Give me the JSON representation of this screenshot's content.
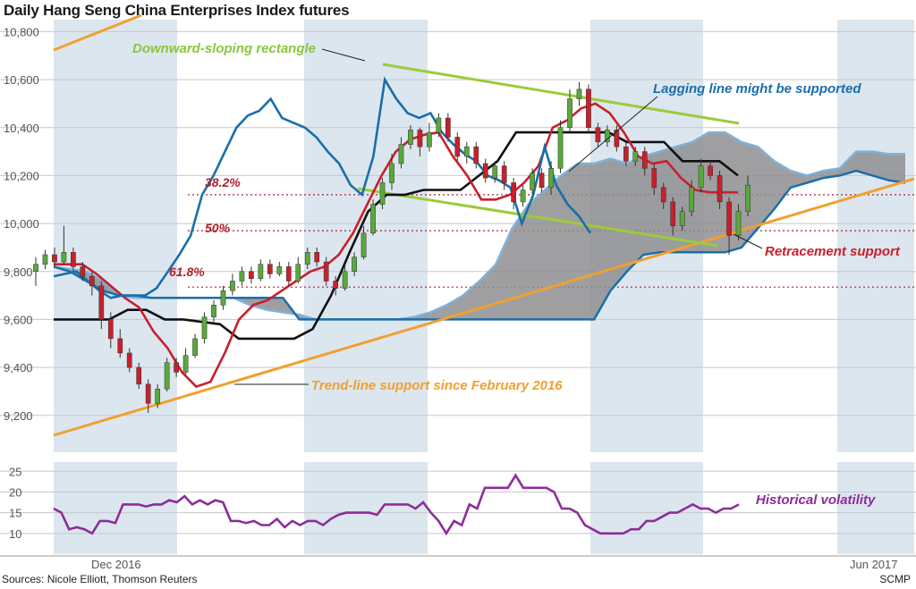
{
  "header": {
    "title": "Daily Hang Seng China Enterprises Index futures"
  },
  "footer": {
    "sources": "Sources: Nicole Elliott, Thomson Reuters",
    "credit": "SCMP"
  },
  "colors": {
    "band": "#dce6ef",
    "grid": "#c8c8c8",
    "candle_up": "#5aa83c",
    "candle_down": "#c8202c",
    "lagging": "#1a6ea8",
    "red_line": "#c8202c",
    "black_line": "#111111",
    "cloud": "#8e8e90",
    "cloud_edge": "#7fb2da",
    "green_line": "#9ccb3b",
    "orange_line": "#f0a030",
    "purple": "#8e2c9a",
    "level_red": "#b0202c"
  },
  "chart_data": [
    {
      "type": "candlestick",
      "title": "Daily Hang Seng China Enterprises Index futures",
      "yticks": [
        "10,800",
        "10,600",
        "10,400",
        "10,200",
        "10,000",
        "9,800",
        "9,600",
        "9,400",
        "9,200"
      ],
      "ylim": [
        9050,
        10850
      ],
      "x_labels": [
        "Dec 2016",
        "Jun 2017"
      ],
      "grid": true,
      "levels": [
        {
          "label": "38.2%",
          "value": 10120
        },
        {
          "label": "50%",
          "value": 9970
        },
        {
          "label": "61.8%",
          "value": 9735
        }
      ],
      "annotations": [
        {
          "text": "Downward-sloping rectangle",
          "color": "green"
        },
        {
          "text": "Lagging line might be supported",
          "color": "blue"
        },
        {
          "text": "Retracement support",
          "color": "red"
        },
        {
          "text": "Trend-line support since February 2016",
          "color": "orange"
        }
      ],
      "candles": [
        [
          9800,
          9830,
          9740,
          9860
        ],
        [
          9830,
          9870,
          9810,
          9890
        ],
        [
          9870,
          9840,
          9820,
          9900
        ],
        [
          9840,
          9880,
          9830,
          9990
        ],
        [
          9880,
          9820,
          9800,
          9900
        ],
        [
          9820,
          9780,
          9760,
          9840
        ],
        [
          9780,
          9740,
          9700,
          9800
        ],
        [
          9740,
          9600,
          9560,
          9760
        ],
        [
          9600,
          9520,
          9480,
          9630
        ],
        [
          9520,
          9460,
          9440,
          9560
        ],
        [
          9460,
          9400,
          9380,
          9480
        ],
        [
          9400,
          9330,
          9310,
          9420
        ],
        [
          9330,
          9250,
          9210,
          9350
        ],
        [
          9250,
          9310,
          9230,
          9330
        ],
        [
          9310,
          9420,
          9300,
          9440
        ],
        [
          9420,
          9380,
          9360,
          9440
        ],
        [
          9380,
          9450,
          9370,
          9480
        ],
        [
          9450,
          9520,
          9440,
          9540
        ],
        [
          9520,
          9610,
          9500,
          9630
        ],
        [
          9610,
          9660,
          9590,
          9680
        ],
        [
          9660,
          9720,
          9640,
          9740
        ],
        [
          9720,
          9760,
          9700,
          9790
        ],
        [
          9760,
          9800,
          9740,
          9820
        ],
        [
          9800,
          9770,
          9750,
          9820
        ],
        [
          9770,
          9830,
          9760,
          9850
        ],
        [
          9830,
          9790,
          9770,
          9850
        ],
        [
          9790,
          9820,
          9780,
          9840
        ],
        [
          9820,
          9760,
          9740,
          9840
        ],
        [
          9760,
          9830,
          9750,
          9860
        ],
        [
          9830,
          9880,
          9810,
          9900
        ],
        [
          9880,
          9840,
          9820,
          9900
        ],
        [
          9840,
          9760,
          9740,
          9860
        ],
        [
          9760,
          9730,
          9700,
          9780
        ],
        [
          9730,
          9800,
          9720,
          9830
        ],
        [
          9800,
          9860,
          9780,
          9880
        ],
        [
          9860,
          9960,
          9850,
          9990
        ],
        [
          9960,
          10080,
          9950,
          10100
        ],
        [
          10080,
          10170,
          10060,
          10190
        ],
        [
          10170,
          10250,
          10140,
          10290
        ],
        [
          10250,
          10330,
          10230,
          10360
        ],
        [
          10330,
          10390,
          10310,
          10410
        ],
        [
          10390,
          10320,
          10280,
          10400
        ],
        [
          10320,
          10380,
          10300,
          10420
        ],
        [
          10380,
          10440,
          10360,
          10460
        ],
        [
          10440,
          10360,
          10340,
          10460
        ],
        [
          10360,
          10280,
          10260,
          10380
        ],
        [
          10280,
          10320,
          10250,
          10340
        ],
        [
          10320,
          10250,
          10230,
          10340
        ],
        [
          10250,
          10190,
          10170,
          10270
        ],
        [
          10190,
          10240,
          10170,
          10260
        ],
        [
          10240,
          10170,
          10140,
          10260
        ],
        [
          10170,
          10090,
          10060,
          10190
        ],
        [
          10090,
          10140,
          10070,
          10160
        ],
        [
          10140,
          10210,
          10120,
          10230
        ],
        [
          10210,
          10150,
          10130,
          10230
        ],
        [
          10150,
          10230,
          10120,
          10260
        ],
        [
          10230,
          10400,
          10210,
          10430
        ],
        [
          10400,
          10520,
          10380,
          10560
        ],
        [
          10520,
          10560,
          10490,
          10590
        ],
        [
          10560,
          10400,
          10380,
          10580
        ],
        [
          10400,
          10340,
          10320,
          10420
        ],
        [
          10340,
          10390,
          10320,
          10410
        ],
        [
          10390,
          10320,
          10300,
          10410
        ],
        [
          10320,
          10260,
          10240,
          10340
        ],
        [
          10260,
          10300,
          10240,
          10320
        ],
        [
          10300,
          10230,
          10200,
          10320
        ],
        [
          10230,
          10150,
          10120,
          10250
        ],
        [
          10150,
          10090,
          10060,
          10170
        ],
        [
          10090,
          9990,
          9950,
          10110
        ],
        [
          9990,
          10050,
          9970,
          10070
        ],
        [
          10050,
          10150,
          10030,
          10180
        ],
        [
          10150,
          10240,
          10130,
          10270
        ],
        [
          10240,
          10200,
          10180,
          10260
        ],
        [
          10200,
          10090,
          10060,
          10220
        ],
        [
          10090,
          9950,
          9870,
          10110
        ],
        [
          9950,
          10050,
          9930,
          10080
        ],
        [
          10050,
          10160,
          10030,
          10200
        ]
      ],
      "series": [
        {
          "name": "Lagging line",
          "values": [
            9780,
            9790,
            9800,
            9760,
            9720,
            9690,
            9700,
            9700,
            9700,
            9730,
            9800,
            9870,
            9950,
            10120,
            10200,
            10300,
            10400,
            10450,
            10470,
            10520,
            10440,
            10420,
            10400,
            10360,
            10300,
            10250,
            10160,
            10120,
            10280,
            10600,
            10520,
            10460,
            10440,
            10460,
            10380,
            10330,
            10290,
            10260,
            10200,
            10180,
            10150,
            10000,
            10120,
            10320,
            10160,
            10080,
            10030,
            9960
          ]
        },
        {
          "name": "Red line",
          "values": [
            9830,
            9830,
            9830,
            9790,
            9740,
            9690,
            9650,
            9550,
            9480,
            9380,
            9320,
            9340,
            9460,
            9600,
            9660,
            9680,
            9720,
            9760,
            9800,
            9820,
            9870,
            9960,
            10080,
            10200,
            10300,
            10350,
            10370,
            10380,
            10280,
            10200,
            10100,
            10100,
            10120,
            10170,
            10240,
            10400,
            10430,
            10480,
            10500,
            10460,
            10380,
            10280,
            10250,
            10260,
            10190,
            10140,
            10130,
            10130,
            10130
          ]
        },
        {
          "name": "Black line",
          "values": [
            9600,
            9600,
            9600,
            9600,
            9640,
            9640,
            9600,
            9600,
            9590,
            9580,
            9520,
            9520,
            9520,
            9520,
            9560,
            9700,
            9880,
            10050,
            10120,
            10120,
            10140,
            10140,
            10140,
            10200,
            10260,
            10380,
            10380,
            10380,
            10380,
            10380,
            10380,
            10340,
            10340,
            10340,
            10260,
            10260,
            10260,
            10200
          ]
        }
      ]
    },
    {
      "type": "line",
      "title": "Historical volatility",
      "yticks": [
        "25",
        "20",
        "15",
        "10"
      ],
      "ylim": [
        5,
        27
      ],
      "series": [
        {
          "name": "Historical volatility",
          "values": [
            16,
            15,
            11,
            11.5,
            11,
            10,
            13,
            13,
            12.5,
            17,
            17,
            17,
            16.5,
            17,
            17,
            18,
            17.5,
            19,
            17,
            18,
            17,
            18,
            17.5,
            13,
            13,
            12.5,
            13,
            12,
            12,
            13.5,
            11.5,
            13,
            12,
            13,
            13,
            12,
            13.5,
            14.5,
            15,
            15,
            15,
            15,
            14.5,
            17,
            17,
            17,
            17,
            16,
            17.5,
            15,
            13,
            10,
            13,
            12,
            17,
            16,
            21,
            21,
            21,
            21,
            24,
            21,
            21,
            21,
            21,
            20,
            16,
            16,
            15,
            12,
            11,
            10,
            10,
            10,
            10,
            11,
            11,
            13,
            13,
            14,
            15,
            15,
            16,
            17,
            16,
            16,
            15,
            16,
            16,
            17
          ]
        }
      ]
    }
  ]
}
